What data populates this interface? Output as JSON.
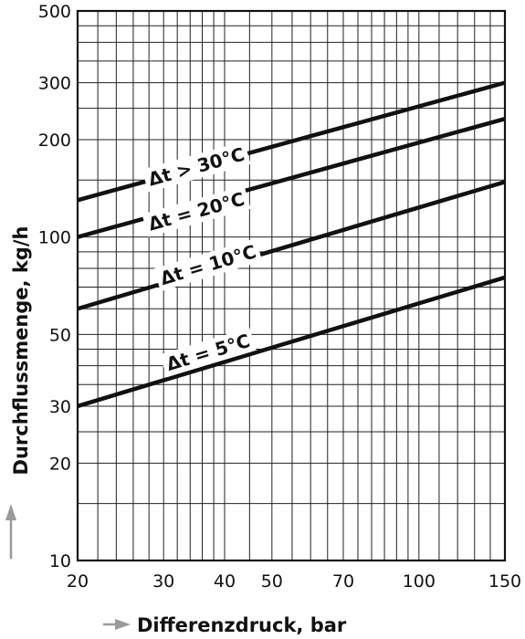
{
  "chart_data": {
    "type": "line",
    "xlabel": "Differenzdruck, bar",
    "ylabel": "Durchflussmenge, kg/h",
    "x_scale": "log",
    "y_scale": "log",
    "xlim": [
      20,
      150
    ],
    "ylim": [
      10,
      500
    ],
    "grid": true,
    "x_ticks": [
      20,
      30,
      40,
      50,
      70,
      100,
      150
    ],
    "y_ticks": [
      10,
      20,
      30,
      50,
      100,
      200,
      300,
      500
    ],
    "x_minor_grid": [
      20,
      22,
      24,
      26,
      28,
      30,
      32,
      34,
      36,
      38,
      40,
      45,
      50,
      55,
      60,
      65,
      70,
      75,
      80,
      85,
      90,
      95,
      100,
      110,
      120,
      130,
      140,
      150
    ],
    "y_minor_grid": [
      10,
      15,
      20,
      25,
      30,
      35,
      40,
      45,
      50,
      60,
      70,
      80,
      90,
      100,
      150,
      200,
      250,
      300,
      350,
      400,
      450,
      500
    ],
    "series": [
      {
        "name": "Δt > 30°C",
        "x": [
          20,
          150
        ],
        "y": [
          130,
          300
        ],
        "label_at": [
          35,
          165
        ]
      },
      {
        "name": "Δt = 20°C",
        "x": [
          20,
          150
        ],
        "y": [
          100,
          232
        ],
        "label_at": [
          35,
          120
        ]
      },
      {
        "name": "Δt = 10°C",
        "x": [
          20,
          150
        ],
        "y": [
          60,
          148
        ],
        "label_at": [
          37,
          82
        ]
      },
      {
        "name": "Δt = 5°C",
        "x": [
          20,
          150
        ],
        "y": [
          30,
          75
        ],
        "label_at": [
          37,
          44
        ]
      }
    ]
  }
}
